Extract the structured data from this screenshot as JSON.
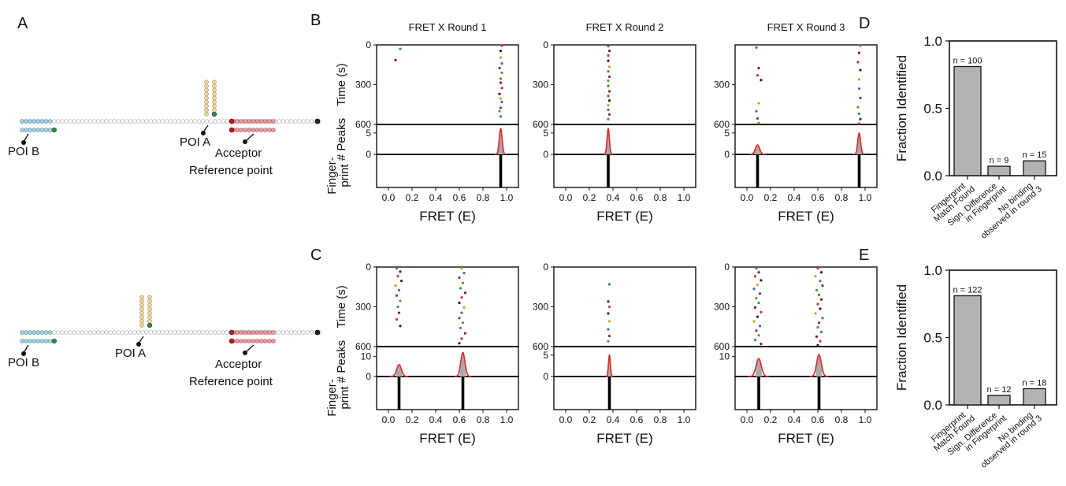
{
  "panel_letters": {
    "a": "A",
    "b": "B",
    "c": "C",
    "d": "D",
    "e": "E"
  },
  "schematics": [
    {
      "id": "top",
      "poi_b_label": "POI B",
      "poi_a_label": "POI A",
      "acceptor_label": [
        "Acceptor",
        "Reference point"
      ]
    },
    {
      "id": "bottom",
      "poi_b_label": "POI B",
      "poi_a_label": "POI A",
      "acceptor_label": [
        "Acceptor",
        "Reference point"
      ]
    }
  ],
  "colors": {
    "poi_b": "#a9d3e3",
    "poi_a": "#ead7a7",
    "acceptor": "#e89a9f",
    "green_dye": "#2f8f4f",
    "red_dye": "#d83a3a",
    "backbone": "#ffffff",
    "fit_line": "#e02828",
    "hist_fill": "#aaaaaa",
    "bar_fill": "#b3b3b3"
  },
  "chart_data": [
    {
      "panel": "B",
      "type": "scatter",
      "title": "FRET X Round 1",
      "xlabel": "FRET (E)",
      "ylabel_top": "Time (s)",
      "ylabel_mid": "# Peaks",
      "ylabel_bottom": "Finger-print",
      "xlim": [
        -0.1,
        1.1
      ],
      "xticks": [
        "0.0",
        "0.2",
        "0.4",
        "0.6",
        "0.8",
        "1.0"
      ],
      "time_ylim": [
        600,
        0
      ],
      "time_yticks": [
        "0",
        "300",
        "600"
      ],
      "peaks_ylim": [
        0,
        7
      ],
      "peaks_yticks": [
        "0",
        "5"
      ],
      "events": [
        [
          0.1,
          30
        ],
        [
          0.06,
          115
        ],
        [
          0.96,
          5
        ],
        [
          0.95,
          45
        ],
        [
          0.95,
          95
        ],
        [
          0.96,
          140
        ],
        [
          0.94,
          175
        ],
        [
          0.96,
          210
        ],
        [
          0.95,
          255
        ],
        [
          0.95,
          285
        ],
        [
          0.96,
          325
        ],
        [
          0.94,
          370
        ],
        [
          0.95,
          405
        ],
        [
          0.96,
          430
        ],
        [
          0.95,
          475
        ],
        [
          0.94,
          500
        ],
        [
          0.95,
          540
        ]
      ],
      "gauss": [
        {
          "mu": 0.95,
          "sigma": 0.012,
          "amp": 6
        }
      ],
      "fingerprint": [
        0.95
      ]
    },
    {
      "panel": "B",
      "type": "scatter",
      "title": "FRET X Round 2",
      "xlabel": "FRET (E)",
      "xlim": [
        -0.1,
        1.1
      ],
      "xticks": [
        "0.0",
        "0.2",
        "0.4",
        "0.6",
        "0.8",
        "1.0"
      ],
      "time_ylim": [
        600,
        0
      ],
      "time_yticks": [
        "0",
        "300",
        "600"
      ],
      "peaks_ylim": [
        0,
        7
      ],
      "peaks_yticks": [
        "0",
        "5"
      ],
      "events": [
        [
          0.36,
          10
        ],
        [
          0.37,
          45
        ],
        [
          0.36,
          80
        ],
        [
          0.36,
          120
        ],
        [
          0.37,
          165
        ],
        [
          0.36,
          200
        ],
        [
          0.37,
          240
        ],
        [
          0.36,
          270
        ],
        [
          0.36,
          310
        ],
        [
          0.37,
          350
        ],
        [
          0.36,
          385
        ],
        [
          0.37,
          420
        ],
        [
          0.36,
          455
        ],
        [
          0.36,
          490
        ],
        [
          0.37,
          525
        ],
        [
          0.36,
          560
        ]
      ],
      "gauss": [
        {
          "mu": 0.36,
          "sigma": 0.01,
          "amp": 6
        }
      ],
      "fingerprint": [
        0.36
      ]
    },
    {
      "panel": "B",
      "type": "scatter",
      "title": "FRET X Round 3",
      "xlabel": "FRET (E)",
      "xlim": [
        -0.1,
        1.1
      ],
      "xticks": [
        "0.0",
        "0.2",
        "0.4",
        "0.6",
        "0.8",
        "1.0"
      ],
      "time_ylim": [
        600,
        0
      ],
      "time_yticks": [
        "300",
        "600"
      ],
      "peaks_ylim": [
        0,
        7
      ],
      "peaks_yticks": [
        "0",
        "5"
      ],
      "events": [
        [
          0.08,
          20
        ],
        [
          0.1,
          175
        ],
        [
          0.09,
          230
        ],
        [
          0.12,
          265
        ],
        [
          0.1,
          440
        ],
        [
          0.08,
          500
        ],
        [
          0.09,
          555
        ],
        [
          0.1,
          590
        ],
        [
          0.96,
          5
        ],
        [
          0.95,
          60
        ],
        [
          0.94,
          130
        ],
        [
          0.96,
          190
        ],
        [
          0.95,
          260
        ],
        [
          0.95,
          330
        ],
        [
          0.96,
          400
        ],
        [
          0.94,
          470
        ],
        [
          0.95,
          520
        ],
        [
          0.96,
          560
        ],
        [
          0.95,
          595
        ]
      ],
      "gauss": [
        {
          "mu": 0.09,
          "sigma": 0.018,
          "amp": 2.2
        },
        {
          "mu": 0.95,
          "sigma": 0.012,
          "amp": 5
        }
      ],
      "fingerprint": [
        0.09,
        0.95
      ]
    },
    {
      "panel": "C",
      "type": "scatter",
      "title": "",
      "xlabel": "FRET (E)",
      "ylabel_top": "Time (s)",
      "ylabel_mid": "# Peaks",
      "ylabel_bottom": "Finger-print",
      "xlim": [
        -0.1,
        1.1
      ],
      "xticks": [
        "0.0",
        "0.2",
        "0.4",
        "0.6",
        "0.8",
        "1.0"
      ],
      "time_ylim": [
        600,
        0
      ],
      "time_yticks": [
        "0",
        "300",
        "600"
      ],
      "peaks_ylim": [
        0,
        15
      ],
      "peaks_yticks": [
        "0",
        "10"
      ],
      "events": [
        [
          0.07,
          10
        ],
        [
          0.1,
          35
        ],
        [
          0.08,
          70
        ],
        [
          0.11,
          105
        ],
        [
          0.06,
          140
        ],
        [
          0.09,
          175
        ],
        [
          0.07,
          215
        ],
        [
          0.1,
          255
        ],
        [
          0.08,
          300
        ],
        [
          0.09,
          345
        ],
        [
          0.07,
          395
        ],
        [
          0.1,
          445
        ],
        [
          0.62,
          10
        ],
        [
          0.64,
          45
        ],
        [
          0.6,
          80
        ],
        [
          0.63,
          120
        ],
        [
          0.61,
          160
        ],
        [
          0.65,
          195
        ],
        [
          0.62,
          230
        ],
        [
          0.6,
          270
        ],
        [
          0.64,
          305
        ],
        [
          0.62,
          345
        ],
        [
          0.6,
          385
        ],
        [
          0.63,
          420
        ],
        [
          0.61,
          460
        ],
        [
          0.65,
          500
        ],
        [
          0.62,
          540
        ],
        [
          0.6,
          575
        ]
      ],
      "gauss": [
        {
          "mu": 0.09,
          "sigma": 0.02,
          "amp": 6
        },
        {
          "mu": 0.63,
          "sigma": 0.018,
          "amp": 12
        }
      ],
      "fingerprint": [
        0.09,
        0.63
      ]
    },
    {
      "panel": "C",
      "type": "scatter",
      "title": "",
      "xlabel": "FRET (E)",
      "xlim": [
        -0.1,
        1.1
      ],
      "xticks": [
        "0.0",
        "0.2",
        "0.4",
        "0.6",
        "0.8",
        "1.0"
      ],
      "time_ylim": [
        600,
        0
      ],
      "time_yticks": [
        "0",
        "300",
        "600"
      ],
      "peaks_ylim": [
        0,
        7
      ],
      "peaks_yticks": [
        "0",
        "5"
      ],
      "events": [
        [
          0.37,
          130
        ],
        [
          0.36,
          260
        ],
        [
          0.37,
          300
        ],
        [
          0.36,
          350
        ],
        [
          0.37,
          410
        ],
        [
          0.36,
          470
        ],
        [
          0.37,
          520
        ],
        [
          0.36,
          560
        ]
      ],
      "gauss": [
        {
          "mu": 0.37,
          "sigma": 0.008,
          "amp": 5
        }
      ],
      "fingerprint": [
        0.37
      ]
    },
    {
      "panel": "C",
      "type": "scatter",
      "title": "",
      "xlabel": "FRET (E)",
      "xlim": [
        -0.1,
        1.1
      ],
      "xticks": [
        "0.0",
        "0.2",
        "0.4",
        "0.6",
        "0.8",
        "1.0"
      ],
      "time_ylim": [
        600,
        0
      ],
      "time_yticks": [
        "0",
        "300",
        "600"
      ],
      "peaks_ylim": [
        0,
        15
      ],
      "peaks_yticks": [
        "10"
      ],
      "events": [
        [
          0.08,
          10
        ],
        [
          0.1,
          40
        ],
        [
          0.07,
          70
        ],
        [
          0.12,
          100
        ],
        [
          0.09,
          135
        ],
        [
          0.06,
          165
        ],
        [
          0.11,
          200
        ],
        [
          0.08,
          235
        ],
        [
          0.1,
          270
        ],
        [
          0.07,
          305
        ],
        [
          0.12,
          340
        ],
        [
          0.09,
          375
        ],
        [
          0.06,
          410
        ],
        [
          0.11,
          445
        ],
        [
          0.08,
          480
        ],
        [
          0.1,
          515
        ],
        [
          0.07,
          550
        ],
        [
          0.12,
          580
        ],
        [
          0.6,
          10
        ],
        [
          0.63,
          40
        ],
        [
          0.58,
          70
        ],
        [
          0.62,
          105
        ],
        [
          0.64,
          140
        ],
        [
          0.59,
          175
        ],
        [
          0.61,
          210
        ],
        [
          0.63,
          245
        ],
        [
          0.6,
          280
        ],
        [
          0.62,
          315
        ],
        [
          0.58,
          350
        ],
        [
          0.64,
          385
        ],
        [
          0.61,
          420
        ],
        [
          0.6,
          455
        ],
        [
          0.63,
          490
        ],
        [
          0.59,
          525
        ],
        [
          0.62,
          560
        ],
        [
          0.6,
          590
        ]
      ],
      "gauss": [
        {
          "mu": 0.1,
          "sigma": 0.022,
          "amp": 9
        },
        {
          "mu": 0.61,
          "sigma": 0.02,
          "amp": 11
        }
      ],
      "fingerprint": [
        0.1,
        0.61
      ]
    },
    {
      "panel": "D",
      "type": "bar",
      "ylabel": "Fraction Identified",
      "ylim": [
        0,
        1.0
      ],
      "yticks": [
        "0.0",
        "0.5",
        "1.0"
      ],
      "categories": [
        [
          "Fingerprint",
          "Match Found"
        ],
        [
          "Sign. Difference",
          "in Fingerprint"
        ],
        [
          "No binding",
          "observed in round 3"
        ]
      ],
      "values": [
        0.81,
        0.07,
        0.11
      ],
      "bar_labels": [
        "n = 100",
        "n = 9",
        "n = 15"
      ]
    },
    {
      "panel": "E",
      "type": "bar",
      "ylabel": "Fraction Identified",
      "ylim": [
        0,
        1.0
      ],
      "yticks": [
        "0.0",
        "0.5",
        "1.0"
      ],
      "categories": [
        [
          "Fingerprint",
          "Match Found"
        ],
        [
          "Sign. Difference",
          "in Fingerprint"
        ],
        [
          "No binding",
          "observed in round 3"
        ]
      ],
      "values": [
        0.81,
        0.07,
        0.12
      ],
      "bar_labels": [
        "n = 122",
        "n = 12",
        "n = 18"
      ]
    }
  ]
}
